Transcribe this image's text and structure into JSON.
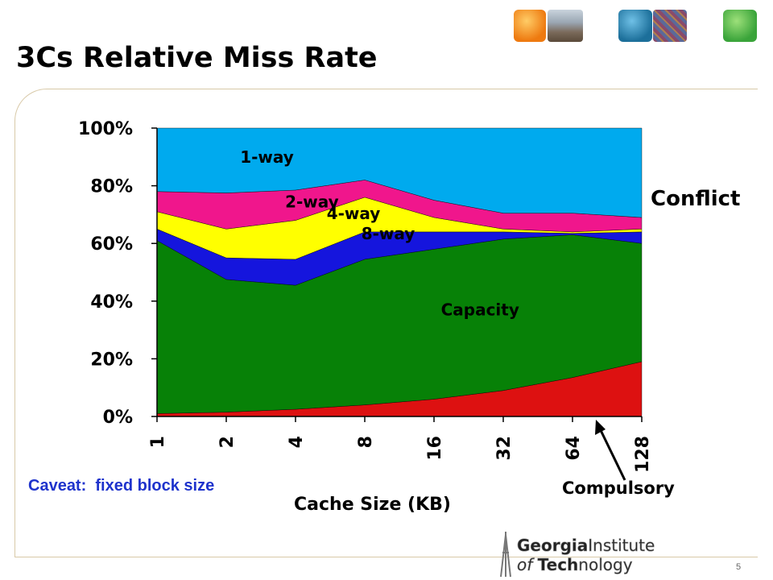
{
  "slide": {
    "title": "3Cs Relative Miss Rate",
    "caveat": "Caveat:  fixed block size",
    "conflict_label": "Conflict",
    "compulsory_label": "Compulsory",
    "page_number": "5",
    "logo_line1_bold": "Georgia",
    "logo_line1_rest": "Institute",
    "logo_line2_pre": "of ",
    "logo_line2_bold": "Tech",
    "logo_line2_rest": "nology"
  },
  "colors": {
    "compulsory": "#dd1111",
    "capacity": "#078107",
    "8-way": "#1515dd",
    "4-way": "#ffff00",
    "2-way": "#f0168c",
    "1-way": "#00aaee",
    "caveat_text": "#1e33cc"
  },
  "chart_data": {
    "type": "area",
    "stacked": true,
    "xlabel": "Cache Size (KB)",
    "ylabel": "",
    "categories": [
      "1",
      "2",
      "4",
      "8",
      "16",
      "32",
      "64",
      "128"
    ],
    "ylim": [
      0,
      100
    ],
    "yticks": [
      "0%",
      "20%",
      "40%",
      "60%",
      "80%",
      "100%"
    ],
    "series": [
      {
        "name": "Compulsory",
        "label": "Compulsory",
        "cumulative": [
          1,
          1.5,
          2.5,
          4,
          6,
          9,
          13.5,
          19
        ]
      },
      {
        "name": "Capacity",
        "label": "Capacity",
        "cumulative": [
          61,
          47.5,
          45.5,
          54.5,
          58,
          61.5,
          63,
          60
        ]
      },
      {
        "name": "8-way",
        "label": "8-way",
        "cumulative": [
          65,
          55,
          54.5,
          64,
          64,
          64,
          63.5,
          64
        ]
      },
      {
        "name": "4-way",
        "label": "4-way",
        "cumulative": [
          71,
          65,
          68,
          76,
          69,
          65,
          64,
          65
        ]
      },
      {
        "name": "2-way",
        "label": "2-way",
        "cumulative": [
          78,
          77.5,
          78.5,
          82,
          75,
          70.5,
          70.5,
          69
        ]
      },
      {
        "name": "1-way",
        "label": "1-way",
        "cumulative": [
          100,
          100,
          100,
          100,
          100,
          100,
          100,
          100
        ]
      }
    ]
  }
}
